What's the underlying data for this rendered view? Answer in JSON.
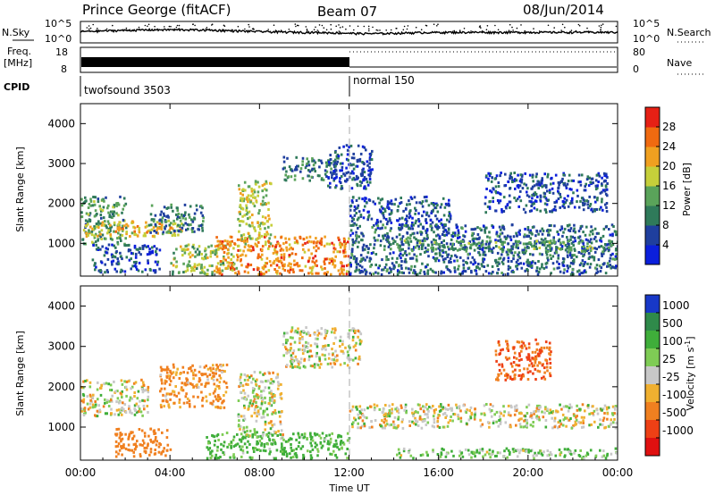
{
  "header": {
    "station": "Prince George (fitACF)",
    "beam": "Beam 07",
    "date": "08/Jun/2014"
  },
  "strips": {
    "nsky_label": "N.Sky",
    "nsky_ticks": [
      "10^5",
      "10^0"
    ],
    "nsearch_label": "N.Search",
    "nsearch_ticks": [
      "10^5",
      "10^0"
    ],
    "freq_label_1": "Freq.",
    "freq_label_2": "[MHz]",
    "freq_ticks": [
      "18",
      "8"
    ],
    "nave_label": "Nave",
    "nave_ticks": [
      "80",
      "0"
    ],
    "cpid_label": "CPID",
    "cpid_modes": [
      "twofsound 3503",
      "normal 150"
    ]
  },
  "axes": {
    "xlabel": "Time UT",
    "ylabel": "Slant Range [km]",
    "x_ticks": [
      "00:00",
      "04:00",
      "08:00",
      "12:00",
      "16:00",
      "20:00",
      "00:00"
    ],
    "y_ticks": [
      "1000",
      "2000",
      "3000",
      "4000"
    ]
  },
  "power_colorbar": {
    "label": "Power [dB]",
    "ticks": [
      "4",
      "8",
      "12",
      "16",
      "20",
      "24",
      "28"
    ],
    "colors": [
      "#0b1fdc",
      "#1f3f9e",
      "#2f7a5a",
      "#5aa35a",
      "#c6cf3a",
      "#f0a020",
      "#f06a10",
      "#e62015"
    ]
  },
  "velocity_colorbar": {
    "label_main": "Velocity [m s",
    "label_sup": "-1",
    "label_end": "]",
    "ticks": [
      "1000",
      "500",
      "100",
      "25",
      "-25",
      "-100",
      "-500",
      "-1000"
    ],
    "colors": [
      "#1838c8",
      "#2f8a4a",
      "#3fae3a",
      "#7fcc55",
      "#c8c8c8",
      "#f0b030",
      "#f08020",
      "#ee4015",
      "#e01010"
    ]
  },
  "chart_data": [
    {
      "type": "heatmap",
      "panel": "power",
      "xlabel": "Time UT",
      "ylabel": "Slant Range [km]",
      "x_range": [
        "00:00",
        "24:00"
      ],
      "ylim": [
        180,
        4500
      ],
      "zlabel": "Power [dB]",
      "zlim": [
        0,
        32
      ],
      "regions": [
        {
          "t": [
            0.0,
            2.0
          ],
          "range": [
            1000,
            2200
          ],
          "power_db": 12
        },
        {
          "t": [
            0.0,
            4.5
          ],
          "range": [
            1200,
            1600
          ],
          "power_db": 20
        },
        {
          "t": [
            0.5,
            3.5
          ],
          "range": [
            300,
            1000
          ],
          "power_db": 6
        },
        {
          "t": [
            3.0,
            5.5
          ],
          "range": [
            1300,
            2000
          ],
          "power_db": 10
        },
        {
          "t": [
            4.0,
            7.0
          ],
          "range": [
            250,
            1000
          ],
          "power_db": 16
        },
        {
          "t": [
            6.0,
            12.0
          ],
          "range": [
            250,
            1200
          ],
          "power_db": 24
        },
        {
          "t": [
            7.0,
            8.5
          ],
          "range": [
            1000,
            2600
          ],
          "power_db": 18
        },
        {
          "t": [
            9.0,
            11.5
          ],
          "range": [
            2600,
            3200
          ],
          "power_db": 10
        },
        {
          "t": [
            11.0,
            13.0
          ],
          "range": [
            2400,
            3500
          ],
          "power_db": 6
        },
        {
          "t": [
            12.0,
            16.5
          ],
          "range": [
            1400,
            2200
          ],
          "power_db": 6
        },
        {
          "t": [
            12.0,
            24.0
          ],
          "range": [
            250,
            1500
          ],
          "power_db": 8
        },
        {
          "t": [
            14.0,
            24.0
          ],
          "range": [
            800,
            1100
          ],
          "power_db": 12
        },
        {
          "t": [
            18.0,
            23.5
          ],
          "range": [
            1800,
            2800
          ],
          "power_db": 6
        }
      ]
    },
    {
      "type": "heatmap",
      "panel": "velocity",
      "xlabel": "Time UT",
      "ylabel": "Slant Range [km]",
      "x_range": [
        "00:00",
        "24:00"
      ],
      "ylim": [
        180,
        4500
      ],
      "zlabel": "Velocity [m s-1]",
      "zlim": [
        -1000,
        1000
      ],
      "regions": [
        {
          "t": [
            0.0,
            3.0
          ],
          "range": [
            1300,
            2200
          ],
          "velocity": 0
        },
        {
          "t": [
            1.5,
            4.0
          ],
          "range": [
            300,
            1000
          ],
          "velocity": -150
        },
        {
          "t": [
            3.5,
            6.5
          ],
          "range": [
            1500,
            2600
          ],
          "velocity": -100
        },
        {
          "t": [
            5.5,
            12.0
          ],
          "range": [
            250,
            900
          ],
          "velocity": 100
        },
        {
          "t": [
            7.0,
            9.0
          ],
          "range": [
            800,
            2400
          ],
          "velocity": 0
        },
        {
          "t": [
            9.0,
            12.5
          ],
          "range": [
            2500,
            3500
          ],
          "velocity": 0
        },
        {
          "t": [
            12.0,
            24.0
          ],
          "range": [
            1000,
            1600
          ],
          "velocity": 0
        },
        {
          "t": [
            14.0,
            24.0
          ],
          "range": [
            250,
            500
          ],
          "velocity": 50
        },
        {
          "t": [
            18.5,
            21.0
          ],
          "range": [
            2200,
            3200
          ],
          "velocity": -300
        }
      ]
    },
    {
      "type": "line",
      "panel": "nsky_nsearch",
      "ylabel": "N.Sky / N.Search",
      "yscale": "log",
      "ylim": [
        1,
        100000
      ]
    },
    {
      "type": "line",
      "panel": "freq_nave",
      "ylabel": "Freq. [MHz] / Nave",
      "freq_ylim": [
        8,
        18
      ],
      "nave_ylim": [
        0,
        80
      ],
      "mode_change_at": "12:00"
    }
  ]
}
